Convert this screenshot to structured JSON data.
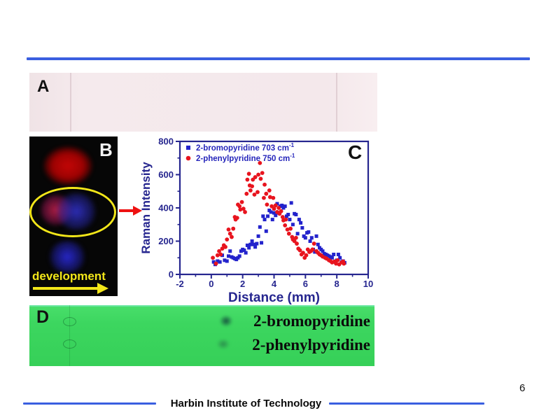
{
  "slide": {
    "page_number": "6",
    "footer": "Harbin Institute of Technology"
  },
  "colors": {
    "accent-blue": "#3a5fe0",
    "axis-blue": "#26268f",
    "series-blue": "#2323cc",
    "series-red": "#e8141e",
    "panel-green": "#3cd65f",
    "arrow-red": "#ee1111",
    "yellow": "#f2e619"
  },
  "panels": {
    "a": {
      "label": "A"
    },
    "b": {
      "label": "B",
      "caption": "development"
    },
    "c": {
      "label": "C"
    },
    "d": {
      "label": "D",
      "spot_labels": [
        "2-bromopyridine",
        "2-phenylpyridine"
      ]
    }
  },
  "chart_data": {
    "type": "scatter",
    "title": "",
    "xlabel": "Distance (mm)",
    "ylabel": "Raman Intensity",
    "xlim": [
      -2,
      10
    ],
    "ylim": [
      0,
      800
    ],
    "xticks": [
      -2,
      0,
      2,
      4,
      6,
      8,
      10
    ],
    "yticks": [
      0,
      200,
      400,
      600,
      800
    ],
    "grid": false,
    "legend_position": "top-left",
    "series": [
      {
        "name": "2-bromopyridine 703 cm⁻¹",
        "marker": "square",
        "color": "#2323cc",
        "points": [
          [
            0.15,
            75
          ],
          [
            0.25,
            60
          ],
          [
            0.4,
            80
          ],
          [
            0.55,
            75
          ],
          [
            0.7,
            115
          ],
          [
            0.85,
            85
          ],
          [
            1.0,
            80
          ],
          [
            1.1,
            110
          ],
          [
            1.2,
            140
          ],
          [
            1.3,
            105
          ],
          [
            1.4,
            100
          ],
          [
            1.5,
            95
          ],
          [
            1.6,
            90
          ],
          [
            1.7,
            100
          ],
          [
            1.8,
            110
          ],
          [
            1.9,
            140
          ],
          [
            2.0,
            150
          ],
          [
            2.1,
            145
          ],
          [
            2.2,
            130
          ],
          [
            2.3,
            175
          ],
          [
            2.4,
            160
          ],
          [
            2.5,
            180
          ],
          [
            2.6,
            200
          ],
          [
            2.7,
            180
          ],
          [
            2.8,
            165
          ],
          [
            2.9,
            185
          ],
          [
            3.0,
            230
          ],
          [
            3.1,
            285
          ],
          [
            3.2,
            190
          ],
          [
            3.3,
            350
          ],
          [
            3.4,
            330
          ],
          [
            3.5,
            260
          ],
          [
            3.6,
            350
          ],
          [
            3.7,
            385
          ],
          [
            3.8,
            375
          ],
          [
            3.9,
            330
          ],
          [
            4.0,
            370
          ],
          [
            4.1,
            355
          ],
          [
            4.2,
            425
          ],
          [
            4.3,
            370
          ],
          [
            4.4,
            410
          ],
          [
            4.5,
            415
          ],
          [
            4.6,
            400
          ],
          [
            4.7,
            410
          ],
          [
            4.8,
            350
          ],
          [
            4.9,
            360
          ],
          [
            5.0,
            330
          ],
          [
            5.1,
            430
          ],
          [
            5.2,
            300
          ],
          [
            5.3,
            365
          ],
          [
            5.4,
            360
          ],
          [
            5.5,
            245
          ],
          [
            5.6,
            330
          ],
          [
            5.7,
            310
          ],
          [
            5.8,
            280
          ],
          [
            5.9,
            230
          ],
          [
            6.0,
            220
          ],
          [
            6.1,
            250
          ],
          [
            6.2,
            255
          ],
          [
            6.3,
            200
          ],
          [
            6.4,
            220
          ],
          [
            6.5,
            150
          ],
          [
            6.6,
            135
          ],
          [
            6.7,
            230
          ],
          [
            6.8,
            180
          ],
          [
            6.9,
            160
          ],
          [
            7.0,
            150
          ],
          [
            7.1,
            140
          ],
          [
            7.2,
            125
          ],
          [
            7.3,
            120
          ],
          [
            7.4,
            115
          ],
          [
            7.5,
            110
          ],
          [
            7.6,
            105
          ],
          [
            7.7,
            100
          ],
          [
            7.8,
            120
          ],
          [
            7.9,
            75
          ],
          [
            8.0,
            85
          ],
          [
            8.1,
            120
          ],
          [
            8.2,
            100
          ],
          [
            8.3,
            75
          ],
          [
            8.4,
            80
          ],
          [
            8.5,
            70
          ]
        ]
      },
      {
        "name": "2-phenylpyridine 750 cm⁻¹",
        "marker": "circle",
        "color": "#e8141e",
        "points": [
          [
            0.1,
            100
          ],
          [
            0.3,
            65
          ],
          [
            0.4,
            115
          ],
          [
            0.5,
            140
          ],
          [
            0.6,
            120
          ],
          [
            0.7,
            155
          ],
          [
            0.8,
            175
          ],
          [
            0.9,
            165
          ],
          [
            1.0,
            210
          ],
          [
            1.1,
            270
          ],
          [
            1.2,
            245
          ],
          [
            1.3,
            225
          ],
          [
            1.4,
            275
          ],
          [
            1.5,
            345
          ],
          [
            1.55,
            330
          ],
          [
            1.65,
            340
          ],
          [
            1.7,
            420
          ],
          [
            1.8,
            410
          ],
          [
            1.85,
            390
          ],
          [
            1.95,
            435
          ],
          [
            2.05,
            395
          ],
          [
            2.15,
            375
          ],
          [
            2.25,
            485
          ],
          [
            2.3,
            570
          ],
          [
            2.4,
            605
          ],
          [
            2.45,
            535
          ],
          [
            2.5,
            505
          ],
          [
            2.6,
            530
          ],
          [
            2.65,
            570
          ],
          [
            2.75,
            480
          ],
          [
            2.8,
            585
          ],
          [
            2.95,
            495
          ],
          [
            3.0,
            600
          ],
          [
            3.1,
            670
          ],
          [
            3.15,
            575
          ],
          [
            3.25,
            610
          ],
          [
            3.35,
            460
          ],
          [
            3.4,
            540
          ],
          [
            3.5,
            485
          ],
          [
            3.55,
            420
          ],
          [
            3.7,
            505
          ],
          [
            3.75,
            465
          ],
          [
            3.85,
            410
          ],
          [
            3.95,
            460
          ],
          [
            4.0,
            395
          ],
          [
            4.1,
            415
          ],
          [
            4.2,
            375
          ],
          [
            4.3,
            400
          ],
          [
            4.35,
            365
          ],
          [
            4.45,
            380
          ],
          [
            4.55,
            345
          ],
          [
            4.6,
            325
          ],
          [
            4.7,
            295
          ],
          [
            4.75,
            330
          ],
          [
            4.85,
            270
          ],
          [
            4.95,
            245
          ],
          [
            5.05,
            275
          ],
          [
            5.15,
            225
          ],
          [
            5.2,
            210
          ],
          [
            5.3,
            200
          ],
          [
            5.4,
            220
          ],
          [
            5.45,
            185
          ],
          [
            5.55,
            155
          ],
          [
            5.65,
            145
          ],
          [
            5.75,
            120
          ],
          [
            5.85,
            130
          ],
          [
            5.95,
            100
          ],
          [
            6.05,
            115
          ],
          [
            6.15,
            150
          ],
          [
            6.25,
            135
          ],
          [
            6.35,
            140
          ],
          [
            6.45,
            150
          ],
          [
            6.55,
            185
          ],
          [
            6.7,
            140
          ],
          [
            6.8,
            130
          ],
          [
            6.9,
            120
          ],
          [
            7.0,
            115
          ],
          [
            7.1,
            107
          ],
          [
            7.25,
            100
          ],
          [
            7.35,
            95
          ],
          [
            7.5,
            85
          ],
          [
            7.6,
            80
          ],
          [
            7.7,
            72
          ],
          [
            7.85,
            78
          ],
          [
            7.95,
            65
          ],
          [
            8.05,
            85
          ],
          [
            8.15,
            60
          ],
          [
            8.3,
            72
          ],
          [
            8.4,
            78
          ],
          [
            8.45,
            65
          ]
        ]
      }
    ]
  }
}
